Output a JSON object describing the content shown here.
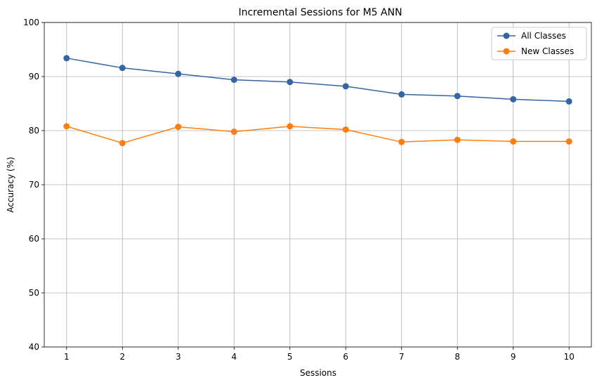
{
  "chart_data": {
    "type": "line",
    "title": "Incremental Sessions for M5 ANN",
    "xlabel": "Sessions",
    "ylabel": "Accuracy (%)",
    "x": [
      1,
      2,
      3,
      4,
      5,
      6,
      7,
      8,
      9,
      10
    ],
    "xticks": [
      "1",
      "2",
      "3",
      "4",
      "5",
      "6",
      "7",
      "8",
      "9",
      "10"
    ],
    "yticks": [
      "40",
      "50",
      "60",
      "70",
      "80",
      "90",
      "100"
    ],
    "xlim": [
      0.6,
      10.4
    ],
    "ylim": [
      40,
      100
    ],
    "grid": true,
    "legend_position": "upper right",
    "series": [
      {
        "name": "All Classes",
        "color": "#3465a4",
        "marker": "circle",
        "values": [
          93.4,
          91.6,
          90.5,
          89.4,
          89.0,
          88.2,
          86.7,
          86.4,
          85.8,
          85.4
        ]
      },
      {
        "name": "New Classes",
        "color": "#ff7f0e",
        "marker": "circle",
        "values": [
          80.8,
          77.7,
          80.7,
          79.8,
          80.8,
          80.2,
          77.9,
          78.3,
          78.0,
          78.0
        ]
      }
    ]
  }
}
